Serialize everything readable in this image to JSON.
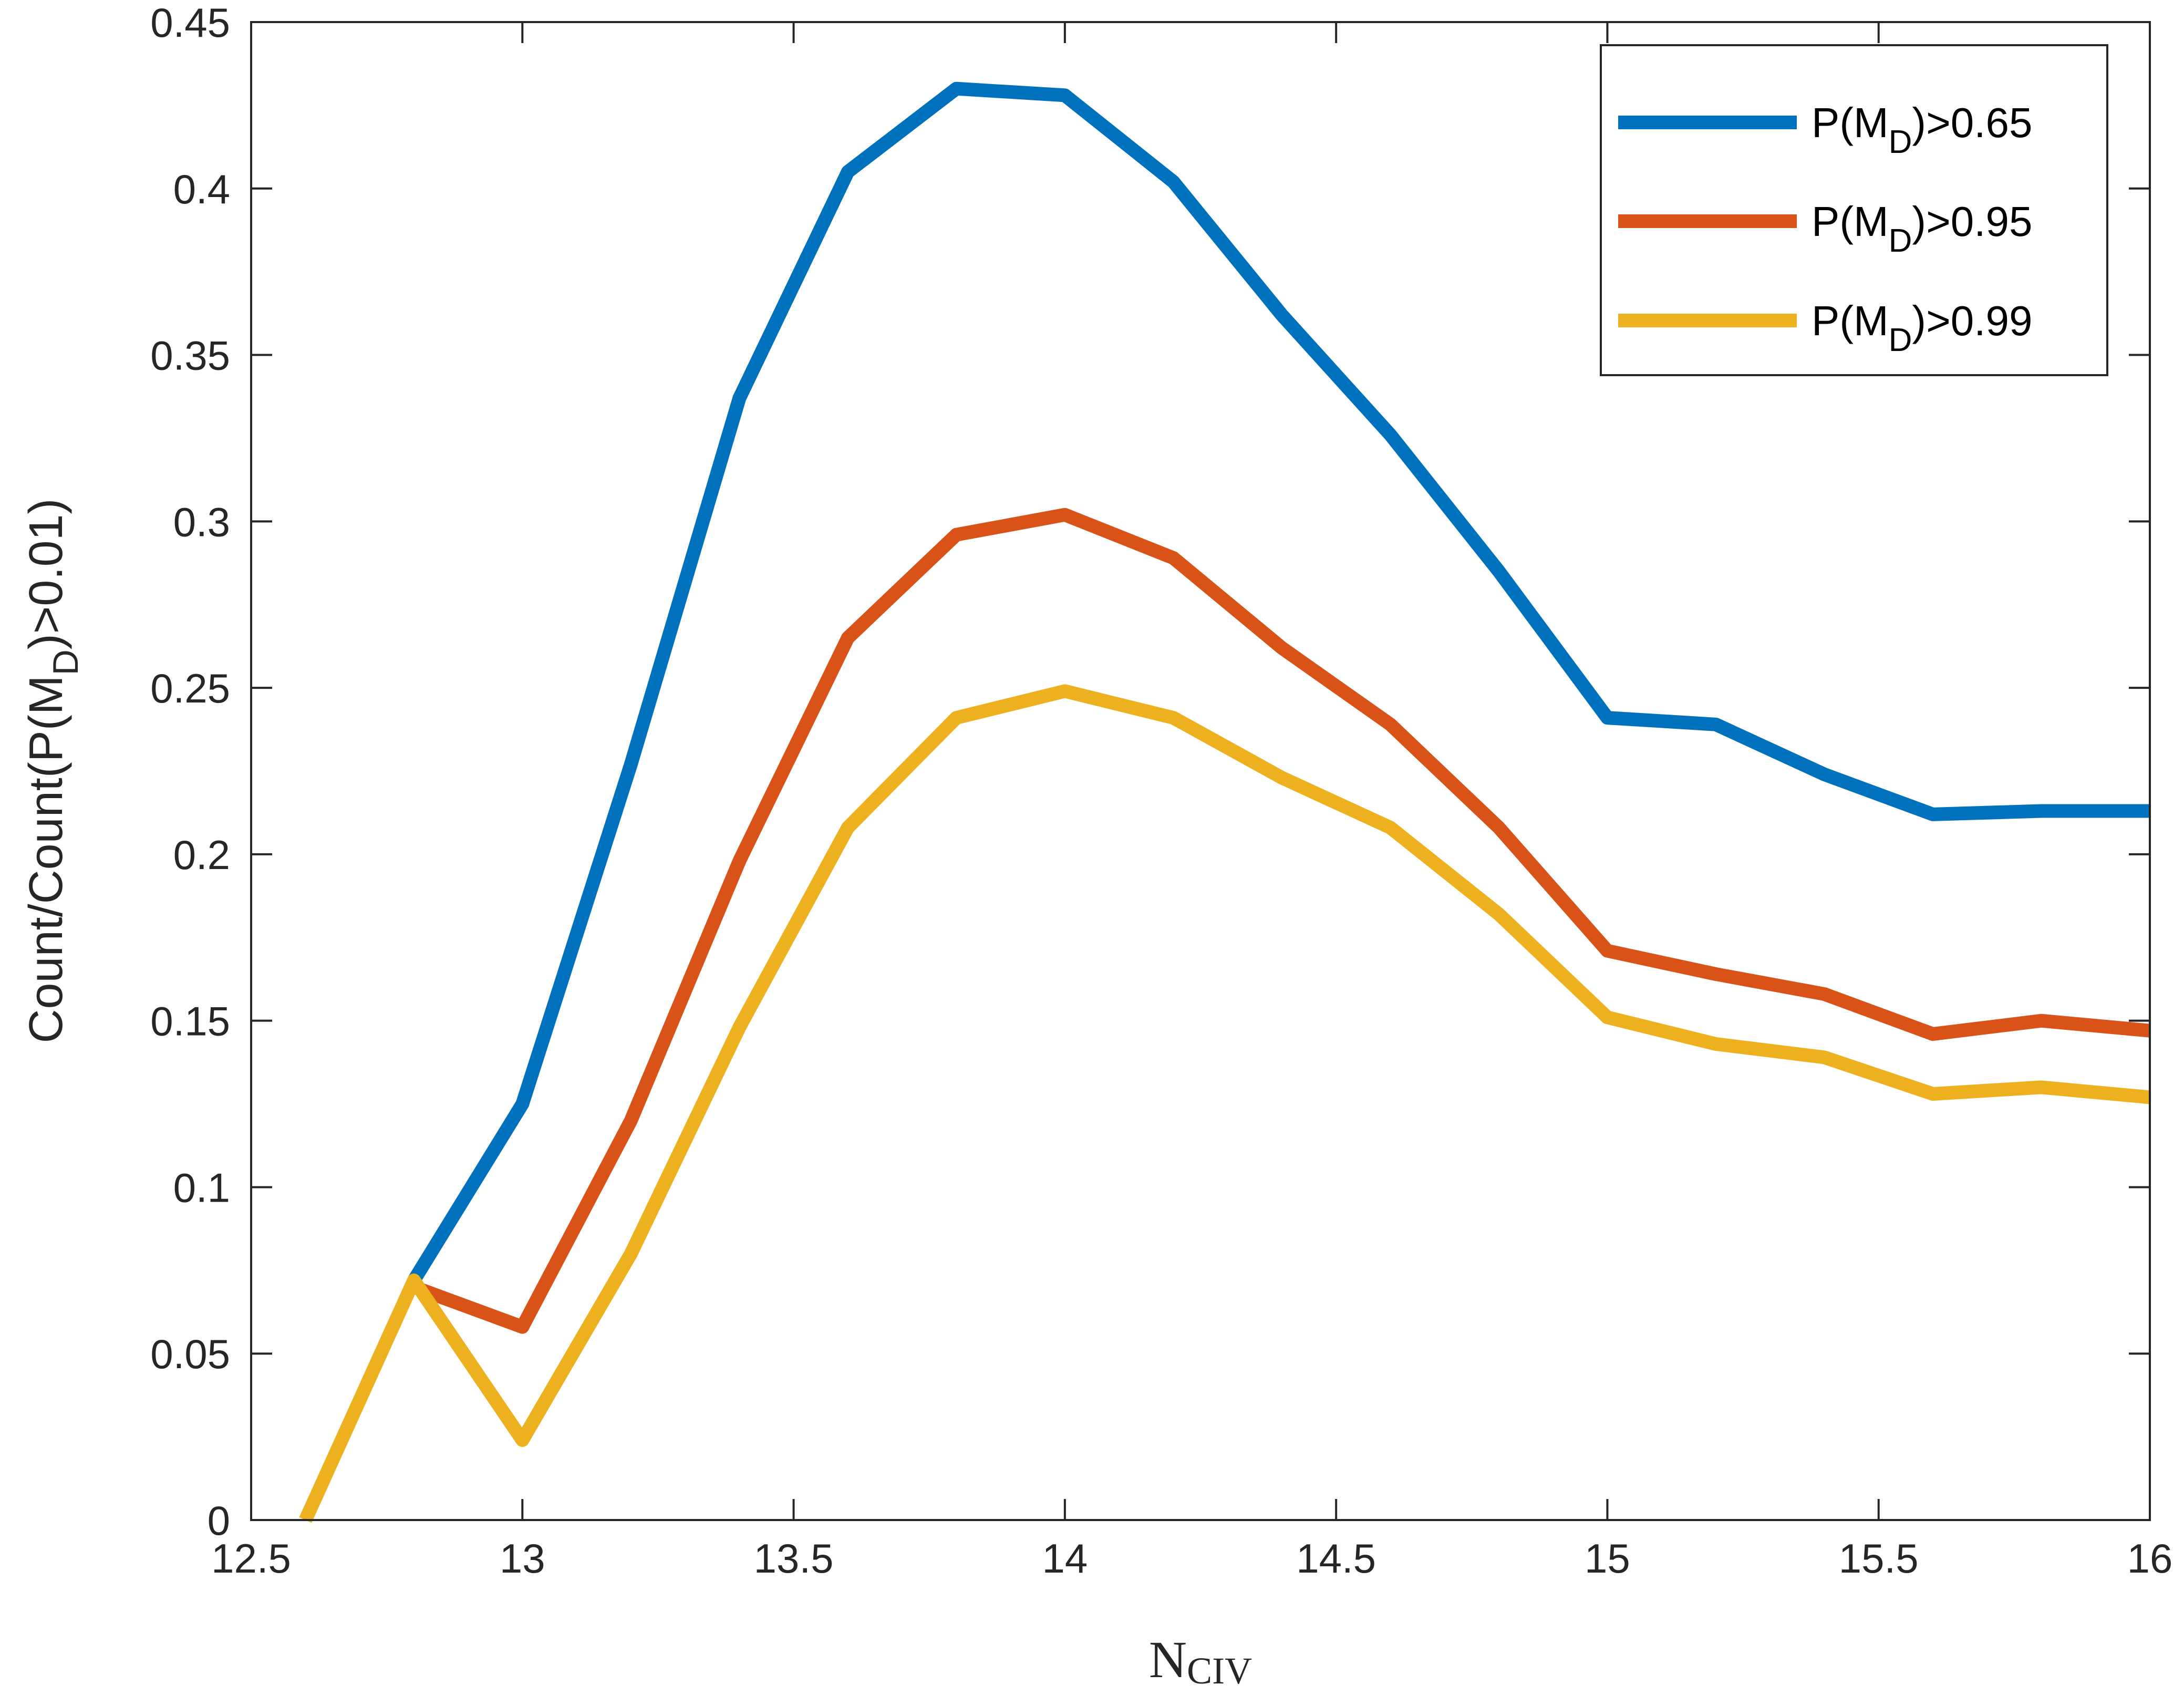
{
  "chart_data": {
    "type": "line",
    "title": "",
    "xlabel": {
      "main": "N",
      "sub": "CIV"
    },
    "ylabel": {
      "before": "Count/Count(P(M",
      "sub": "D",
      "after": ")>0.01)"
    },
    "xlim": [
      12.5,
      16
    ],
    "ylim": [
      0,
      0.45
    ],
    "xticks": [
      12.5,
      13,
      13.5,
      14,
      14.5,
      15,
      15.5,
      16
    ],
    "xtick_labels": [
      "12.5",
      "13",
      "13.5",
      "14",
      "14.5",
      "15",
      "15.5",
      "16"
    ],
    "yticks": [
      0,
      0.05,
      0.1,
      0.15,
      0.2,
      0.25,
      0.3,
      0.35,
      0.4,
      0.45
    ],
    "ytick_labels": [
      "0",
      "0.05",
      "0.1",
      "0.15",
      "0.2",
      "0.25",
      "0.3",
      "0.35",
      "0.4",
      "0.45"
    ],
    "grid": false,
    "legend_position": "top-right",
    "series": [
      {
        "name": "P(M_D)>0.65",
        "legend": {
          "before": "P(M",
          "sub": "D",
          "after": ")>0.65"
        },
        "color": "#0072BD",
        "x": [
          12.8,
          13.0,
          13.2,
          13.4,
          13.6,
          13.8,
          14.0,
          14.2,
          14.4,
          14.6,
          14.8,
          15.0,
          15.2,
          15.4,
          15.6,
          15.8,
          16.0
        ],
        "y": [
          0.072,
          0.125,
          0.227,
          0.337,
          0.405,
          0.43,
          0.428,
          0.402,
          0.362,
          0.326,
          0.285,
          0.241,
          0.239,
          0.224,
          0.212,
          0.213,
          0.213
        ]
      },
      {
        "name": "P(M_D)>0.95",
        "legend": {
          "before": "P(M",
          "sub": "D",
          "after": ")>0.95"
        },
        "color": "#D95319",
        "x": [
          12.8,
          13.0,
          13.2,
          13.4,
          13.6,
          13.8,
          14.0,
          14.2,
          14.4,
          14.6,
          14.8,
          15.0,
          15.2,
          15.4,
          15.6,
          15.8,
          16.0
        ],
        "y": [
          0.07,
          0.058,
          0.12,
          0.198,
          0.265,
          0.296,
          0.302,
          0.289,
          0.262,
          0.239,
          0.208,
          0.171,
          0.164,
          0.158,
          0.146,
          0.15,
          0.147
        ]
      },
      {
        "name": "P(M_D)>0.99",
        "legend": {
          "before": "P(M",
          "sub": "D",
          "after": ")>0.99"
        },
        "color": "#EDB120",
        "x": [
          12.6,
          12.8,
          13.0,
          13.2,
          13.4,
          13.6,
          13.8,
          14.0,
          14.2,
          14.4,
          14.6,
          14.8,
          15.0,
          15.2,
          15.4,
          15.6,
          15.8,
          16.0
        ],
        "y": [
          0.0,
          0.072,
          0.024,
          0.08,
          0.148,
          0.208,
          0.241,
          0.249,
          0.241,
          0.223,
          0.208,
          0.182,
          0.151,
          0.143,
          0.139,
          0.128,
          0.13,
          0.127
        ]
      }
    ]
  }
}
